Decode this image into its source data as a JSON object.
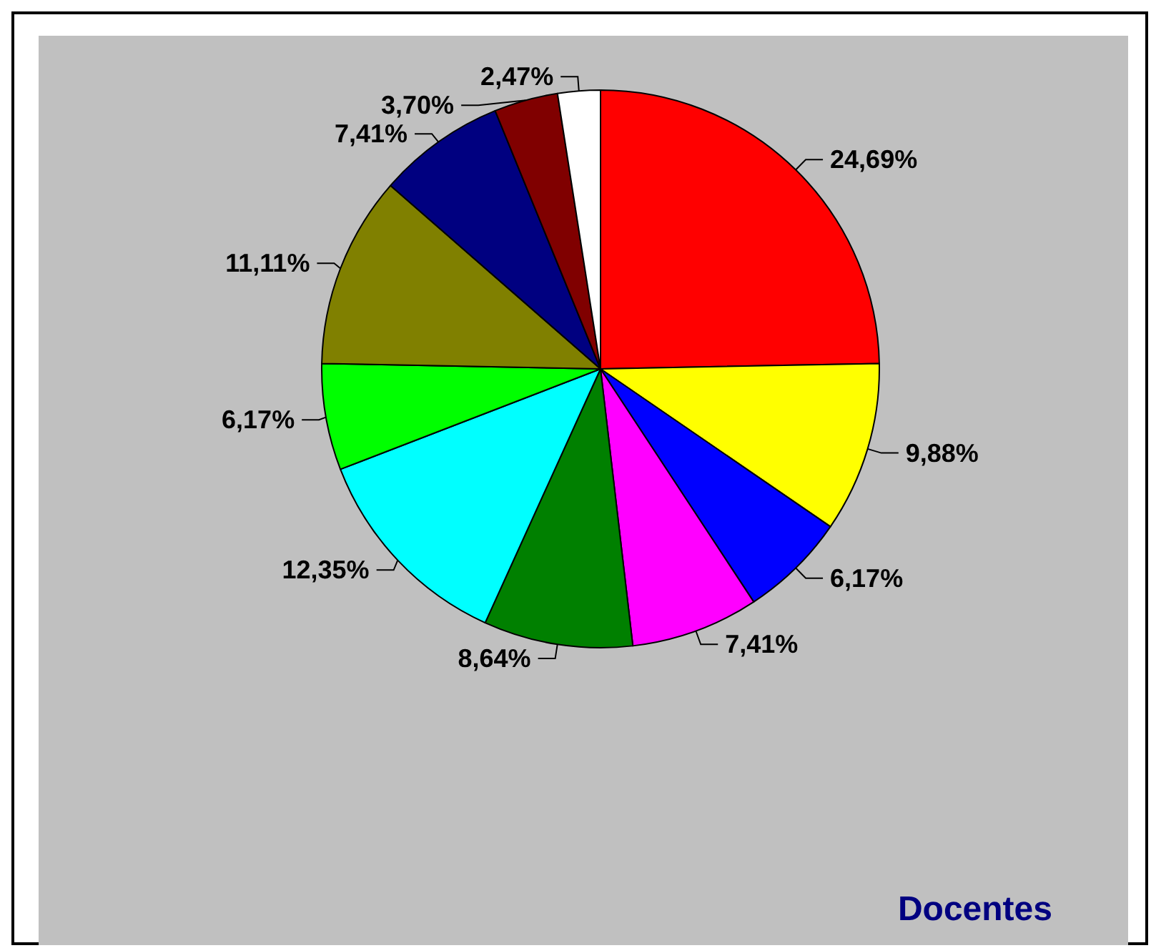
{
  "chart_data": {
    "type": "pie",
    "title": "Docentes",
    "categories": [
      null,
      null,
      null,
      null,
      null,
      null,
      null,
      null,
      null,
      null,
      null
    ],
    "values": [
      24.69,
      9.88,
      6.17,
      7.41,
      8.64,
      12.35,
      6.17,
      11.11,
      7.41,
      3.7,
      2.47
    ],
    "colors": [
      "#ff0000",
      "#ffff00",
      "#0000ff",
      "#ff00ff",
      "#008000",
      "#00ffff",
      "#00ff00",
      "#808000",
      "#000080",
      "#800000",
      "#ffffff"
    ],
    "value_labels": [
      "24,69%",
      "9,88%",
      "6,17%",
      "7,41%",
      "8,64%",
      "12,35%",
      "6,17%",
      "11,11%",
      "7,41%",
      "3,70%",
      "2,47%"
    ]
  }
}
